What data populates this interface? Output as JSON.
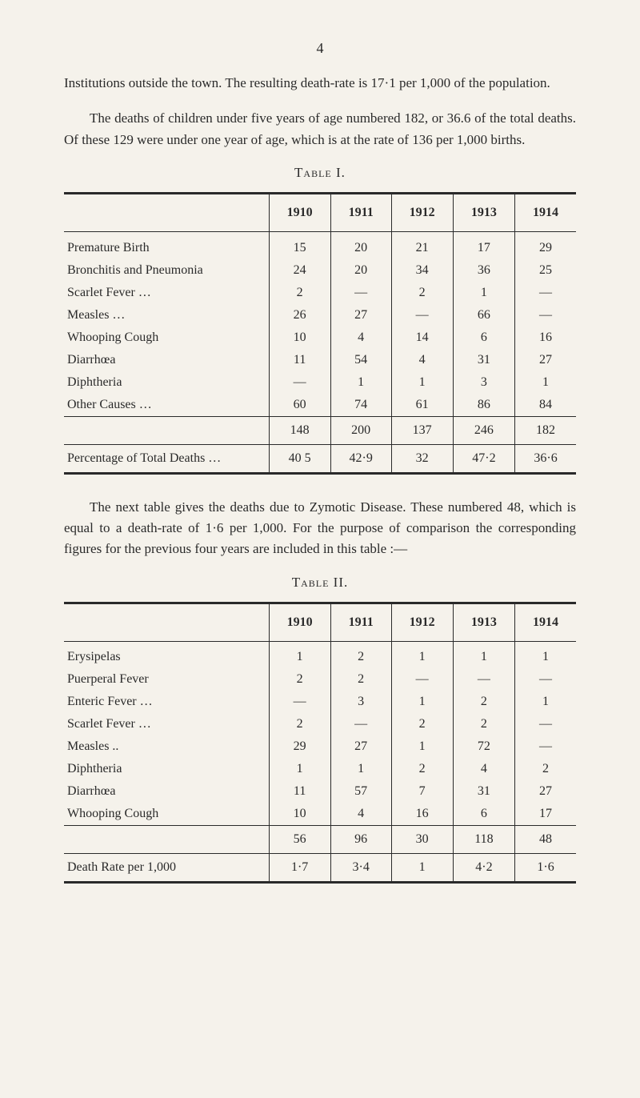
{
  "pageNumber": "4",
  "para1": "Institutions outside the town.   The resulting death-rate is 17·1 per 1,000 of the population.",
  "para2": "The deaths of children under five years of age numbered 182, or 36.6 of the total deaths.   Of these 129 were under one year of age, which is at the rate of 136 per 1,000 births.",
  "table1": {
    "title": "Table I.",
    "years": [
      "1910",
      "1911",
      "1912",
      "1913",
      "1914"
    ],
    "rows": [
      {
        "label": "Premature Birth",
        "vals": [
          "15",
          "20",
          "21",
          "17",
          "29"
        ]
      },
      {
        "label": "Bronchitis and Pneumonia",
        "vals": [
          "24",
          "20",
          "34",
          "36",
          "25"
        ]
      },
      {
        "label": "Scarlet Fever  …",
        "vals": [
          "2",
          "—",
          "2",
          "1",
          "—"
        ]
      },
      {
        "label": "Measles …",
        "vals": [
          "26",
          "27",
          "—",
          "66",
          "—"
        ]
      },
      {
        "label": "Whooping Cough",
        "vals": [
          "10",
          "4",
          "14",
          "6",
          "16"
        ]
      },
      {
        "label": "Diarrhœa",
        "vals": [
          "11",
          "54",
          "4",
          "31",
          "27"
        ]
      },
      {
        "label": "Diphtheria",
        "vals": [
          "—",
          "1",
          "1",
          "3",
          "1"
        ]
      },
      {
        "label": "Other Causes  …",
        "vals": [
          "60",
          "74",
          "61",
          "86",
          "84"
        ]
      }
    ],
    "totals": [
      "148",
      "200",
      "137",
      "246",
      "182"
    ],
    "pctRow": {
      "label": "Percentage of Total Deaths  …",
      "vals": [
        "40 5",
        "42·9",
        "32",
        "47·2",
        "36·6"
      ]
    }
  },
  "para3": "The next table gives the deaths due to Zymotic Disease. These numbered 48, which is equal to a death-rate of 1·6 per 1,000. For the purpose of comparison the corresponding figures for the previous four years are included in this table :—",
  "table2": {
    "title": "Table II.",
    "years": [
      "1910",
      "1911",
      "1912",
      "1913",
      "1914"
    ],
    "rows": [
      {
        "label": "Erysipelas",
        "vals": [
          "1",
          "2",
          "1",
          "1",
          "1"
        ]
      },
      {
        "label": "Puerperal Fever",
        "vals": [
          "2",
          "2",
          "—",
          "—",
          "—"
        ]
      },
      {
        "label": "Enteric Fever  …",
        "vals": [
          "—",
          "3",
          "1",
          "2",
          "1"
        ]
      },
      {
        "label": "Scarlet Fever  …",
        "vals": [
          "2",
          "—",
          "2",
          "2",
          "—"
        ]
      },
      {
        "label": "Measles  ..",
        "vals": [
          "29",
          "27",
          "1",
          "72",
          "—"
        ]
      },
      {
        "label": "Diphtheria",
        "vals": [
          "1",
          "1",
          "2",
          "4",
          "2"
        ]
      },
      {
        "label": "Diarrhœa",
        "vals": [
          "11",
          "57",
          "7",
          "31",
          "27"
        ]
      },
      {
        "label": "Whooping Cough",
        "vals": [
          "10",
          "4",
          "16",
          "6",
          "17"
        ]
      }
    ],
    "totals": [
      "56",
      "96",
      "30",
      "118",
      "48"
    ],
    "pctRow": {
      "label": "Death Rate per 1,000",
      "vals": [
        "1·7",
        "3·4",
        "1",
        "4·2",
        "1·6"
      ]
    }
  },
  "style": {
    "background": "#f5f2eb",
    "text": "#2a2a2a",
    "bodyFontSize": 17
  }
}
